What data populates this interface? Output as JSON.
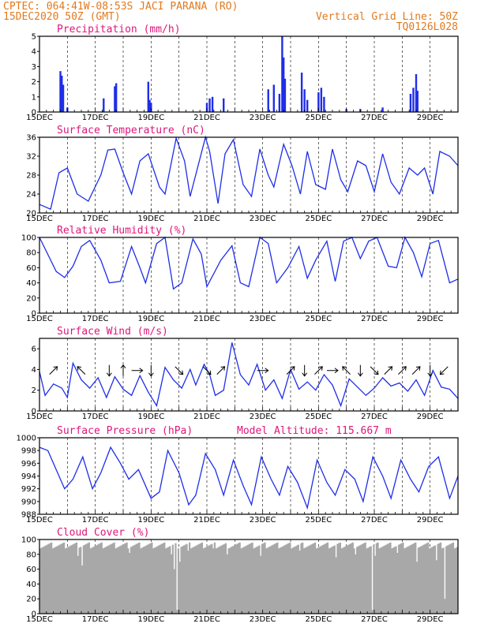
{
  "header": {
    "line1_left": "CPTEC:   064:41W-08:53S   JACI PARANA (RO)",
    "line2_left": "15DEC2020 50Z (GMT)",
    "line2_right": "Vertical Grid Line: 50Z",
    "line3_right": "TQ0126L028"
  },
  "colors": {
    "header": "#e07a1f",
    "panel_title": "#e0157a",
    "series": "#1f2ee8",
    "cloud": "#a8a8a8",
    "axis": "#000000"
  },
  "chart_data": [
    {
      "type": "bar",
      "title": "Precipitation (mm/h)",
      "x_tick_labels": [
        "15DEC",
        "17DEC",
        "19DEC",
        "21DEC",
        "23DEC",
        "25DEC",
        "27DEC",
        "29DEC"
      ],
      "x_range_days": [
        0,
        15
      ],
      "ylim": [
        0,
        5
      ],
      "y_ticks": [
        "0",
        "1",
        "2",
        "3",
        "4",
        "5"
      ],
      "grid": "vertical dashed",
      "points": [
        [
          0.75,
          2.7
        ],
        [
          0.8,
          2.4
        ],
        [
          0.85,
          1.8
        ],
        [
          1.0,
          0.3
        ],
        [
          2.3,
          0.9
        ],
        [
          2.7,
          1.7
        ],
        [
          2.75,
          1.9
        ],
        [
          3.9,
          2.0
        ],
        [
          3.95,
          0.8
        ],
        [
          4.0,
          0.6
        ],
        [
          6.0,
          0.6
        ],
        [
          6.1,
          0.9
        ],
        [
          6.2,
          1.0
        ],
        [
          6.6,
          0.9
        ],
        [
          8.2,
          1.5
        ],
        [
          8.4,
          1.8
        ],
        [
          8.6,
          1.2
        ],
        [
          8.7,
          5.0
        ],
        [
          8.75,
          3.6
        ],
        [
          8.8,
          2.2
        ],
        [
          9.4,
          2.6
        ],
        [
          9.5,
          1.5
        ],
        [
          9.6,
          0.8
        ],
        [
          10.0,
          1.3
        ],
        [
          10.1,
          1.6
        ],
        [
          10.2,
          1.0
        ],
        [
          11.0,
          0.2
        ],
        [
          11.5,
          0.2
        ],
        [
          12.3,
          0.3
        ],
        [
          13.3,
          1.2
        ],
        [
          13.4,
          1.6
        ],
        [
          13.5,
          2.5
        ],
        [
          13.55,
          1.4
        ]
      ]
    },
    {
      "type": "line",
      "title": "Surface Temperature (nC)",
      "x_tick_labels": [
        "15DEC",
        "17DEC",
        "19DEC",
        "21DEC",
        "23DEC",
        "25DEC",
        "27DEC",
        "29DEC"
      ],
      "x_range_days": [
        0,
        15
      ],
      "ylim": [
        20,
        36
      ],
      "y_ticks": [
        "20",
        "24",
        "28",
        "32",
        "36"
      ],
      "grid": "vertical dashed",
      "points": [
        [
          0,
          21.8
        ],
        [
          0.4,
          20.8
        ],
        [
          0.7,
          28.5
        ],
        [
          1.0,
          29.5
        ],
        [
          1.35,
          24.0
        ],
        [
          1.75,
          22.5
        ],
        [
          2.2,
          28.0
        ],
        [
          2.45,
          33.3
        ],
        [
          2.7,
          33.5
        ],
        [
          3.0,
          28.5
        ],
        [
          3.3,
          24.0
        ],
        [
          3.6,
          31.0
        ],
        [
          3.9,
          32.5
        ],
        [
          4.3,
          25.5
        ],
        [
          4.5,
          24.0
        ],
        [
          4.9,
          35.8
        ],
        [
          5.2,
          31.0
        ],
        [
          5.4,
          23.5
        ],
        [
          5.95,
          36.0
        ],
        [
          6.1,
          33.0
        ],
        [
          6.4,
          22.0
        ],
        [
          6.65,
          32.5
        ],
        [
          6.95,
          35.5
        ],
        [
          7.3,
          26.0
        ],
        [
          7.6,
          23.5
        ],
        [
          7.9,
          33.5
        ],
        [
          8.2,
          28.0
        ],
        [
          8.4,
          25.5
        ],
        [
          8.75,
          34.5
        ],
        [
          9.05,
          30.0
        ],
        [
          9.35,
          24.0
        ],
        [
          9.6,
          33.0
        ],
        [
          9.9,
          26.0
        ],
        [
          10.25,
          25.0
        ],
        [
          10.5,
          33.5
        ],
        [
          10.8,
          27.0
        ],
        [
          11.05,
          24.5
        ],
        [
          11.4,
          31.0
        ],
        [
          11.7,
          30.0
        ],
        [
          12.0,
          24.5
        ],
        [
          12.3,
          32.5
        ],
        [
          12.6,
          26.5
        ],
        [
          12.9,
          24.0
        ],
        [
          13.25,
          29.5
        ],
        [
          13.55,
          28.0
        ],
        [
          13.8,
          29.5
        ],
        [
          14.1,
          24.0
        ],
        [
          14.35,
          33.0
        ],
        [
          14.7,
          32.0
        ],
        [
          15.0,
          30.0
        ]
      ]
    },
    {
      "type": "line",
      "title": "Relative Humidity (%)",
      "x_tick_labels": [
        "15DEC",
        "17DEC",
        "19DEC",
        "21DEC",
        "23DEC",
        "25DEC",
        "27DEC",
        "29DEC"
      ],
      "x_range_days": [
        0,
        15
      ],
      "ylim": [
        0,
        100
      ],
      "y_ticks": [
        "0",
        "20",
        "40",
        "60",
        "80",
        "100"
      ],
      "grid": "vertical dashed",
      "points": [
        [
          0,
          100
        ],
        [
          0.6,
          55
        ],
        [
          0.9,
          47
        ],
        [
          1.2,
          62
        ],
        [
          1.5,
          88
        ],
        [
          1.8,
          96
        ],
        [
          2.2,
          70
        ],
        [
          2.5,
          40
        ],
        [
          2.9,
          42
        ],
        [
          3.3,
          88
        ],
        [
          3.6,
          60
        ],
        [
          3.8,
          40
        ],
        [
          4.2,
          92
        ],
        [
          4.5,
          100
        ],
        [
          4.8,
          32
        ],
        [
          5.1,
          40
        ],
        [
          5.5,
          98
        ],
        [
          5.8,
          78
        ],
        [
          6.0,
          35
        ],
        [
          6.5,
          70
        ],
        [
          6.9,
          89
        ],
        [
          7.2,
          40
        ],
        [
          7.5,
          35
        ],
        [
          7.9,
          100
        ],
        [
          8.2,
          92
        ],
        [
          8.5,
          40
        ],
        [
          8.9,
          60
        ],
        [
          9.3,
          88
        ],
        [
          9.6,
          46
        ],
        [
          9.9,
          70
        ],
        [
          10.3,
          95
        ],
        [
          10.6,
          42
        ],
        [
          10.9,
          95
        ],
        [
          11.2,
          100
        ],
        [
          11.5,
          72
        ],
        [
          11.8,
          95
        ],
        [
          12.1,
          100
        ],
        [
          12.5,
          62
        ],
        [
          12.8,
          60
        ],
        [
          13.1,
          100
        ],
        [
          13.4,
          80
        ],
        [
          13.7,
          48
        ],
        [
          14.0,
          92
        ],
        [
          14.3,
          96
        ],
        [
          14.7,
          40
        ],
        [
          15.0,
          45
        ]
      ]
    },
    {
      "type": "line",
      "title": "Surface Wind (m/s)",
      "x_tick_labels": [
        "15DEC",
        "17DEC",
        "19DEC",
        "21DEC",
        "23DEC",
        "25DEC",
        "27DEC",
        "29DEC"
      ],
      "x_range_days": [
        0,
        15
      ],
      "ylim": [
        0,
        7
      ],
      "y_ticks": [
        "0",
        "2",
        "4",
        "6"
      ],
      "grid": "vertical dashed",
      "points": [
        [
          0,
          3.8
        ],
        [
          0.2,
          1.5
        ],
        [
          0.5,
          2.6
        ],
        [
          0.8,
          2.2
        ],
        [
          1.0,
          1.3
        ],
        [
          1.2,
          4.6
        ],
        [
          1.5,
          3.0
        ],
        [
          1.8,
          2.2
        ],
        [
          2.1,
          3.2
        ],
        [
          2.4,
          1.3
        ],
        [
          2.7,
          3.3
        ],
        [
          3.0,
          2.1
        ],
        [
          3.3,
          1.5
        ],
        [
          3.6,
          3.4
        ],
        [
          3.9,
          1.8
        ],
        [
          4.2,
          0.5
        ],
        [
          4.5,
          4.2
        ],
        [
          4.8,
          3.0
        ],
        [
          5.1,
          2.2
        ],
        [
          5.4,
          4.0
        ],
        [
          5.6,
          2.5
        ],
        [
          5.9,
          4.5
        ],
        [
          6.1,
          3.5
        ],
        [
          6.3,
          1.5
        ],
        [
          6.6,
          2.0
        ],
        [
          6.9,
          6.6
        ],
        [
          7.2,
          3.5
        ],
        [
          7.5,
          2.5
        ],
        [
          7.8,
          4.5
        ],
        [
          8.1,
          2.0
        ],
        [
          8.4,
          3.0
        ],
        [
          8.7,
          1.2
        ],
        [
          9.0,
          4.0
        ],
        [
          9.3,
          2.1
        ],
        [
          9.6,
          2.8
        ],
        [
          9.9,
          2.0
        ],
        [
          10.2,
          3.5
        ],
        [
          10.5,
          2.5
        ],
        [
          10.8,
          0.5
        ],
        [
          11.1,
          3.1
        ],
        [
          11.4,
          2.3
        ],
        [
          11.7,
          1.5
        ],
        [
          12.0,
          2.2
        ],
        [
          12.3,
          3.2
        ],
        [
          12.6,
          2.4
        ],
        [
          12.9,
          2.7
        ],
        [
          13.2,
          1.9
        ],
        [
          13.5,
          3.0
        ],
        [
          13.8,
          1.5
        ],
        [
          14.1,
          3.9
        ],
        [
          14.4,
          2.3
        ],
        [
          14.7,
          2.1
        ],
        [
          15.0,
          1.2
        ]
      ],
      "wind_arrows": [
        {
          "x": 0.5,
          "dir": "ne"
        },
        {
          "x": 1.5,
          "dir": "nw"
        },
        {
          "x": 2.5,
          "dir": "s"
        },
        {
          "x": 3.0,
          "dir": "n"
        },
        {
          "x": 3.5,
          "dir": "e"
        },
        {
          "x": 4.0,
          "dir": "s"
        },
        {
          "x": 5.0,
          "dir": "se"
        },
        {
          "x": 6.0,
          "dir": "se"
        },
        {
          "x": 6.5,
          "dir": "ne"
        },
        {
          "x": 8.0,
          "dir": "e"
        },
        {
          "x": 9.0,
          "dir": "ne"
        },
        {
          "x": 9.5,
          "dir": "s"
        },
        {
          "x": 10.0,
          "dir": "ne"
        },
        {
          "x": 10.5,
          "dir": "e"
        },
        {
          "x": 11.0,
          "dir": "nw"
        },
        {
          "x": 11.5,
          "dir": "s"
        },
        {
          "x": 12.0,
          "dir": "se"
        },
        {
          "x": 12.5,
          "dir": "ne"
        },
        {
          "x": 13.0,
          "dir": "ne"
        },
        {
          "x": 13.5,
          "dir": "ne"
        },
        {
          "x": 14.0,
          "dir": "s"
        },
        {
          "x": 14.5,
          "dir": "sw"
        }
      ]
    },
    {
      "type": "line",
      "title": "Surface Pressure (hPa)",
      "annotation": "Model Altitude: 115.667  m",
      "x_tick_labels": [
        "15DEC",
        "17DEC",
        "19DEC",
        "21DEC",
        "23DEC",
        "25DEC",
        "27DEC",
        "29DEC"
      ],
      "x_range_days": [
        0,
        15
      ],
      "ylim": [
        988,
        1000
      ],
      "y_ticks": [
        "988",
        "990",
        "992",
        "994",
        "996",
        "998",
        "1000"
      ],
      "grid": "vertical dashed",
      "points": [
        [
          0,
          998.5
        ],
        [
          0.3,
          998.0
        ],
        [
          0.55,
          995.5
        ],
        [
          0.9,
          992.0
        ],
        [
          1.2,
          993.5
        ],
        [
          1.55,
          997.0
        ],
        [
          1.9,
          992.0
        ],
        [
          2.2,
          994.5
        ],
        [
          2.55,
          998.5
        ],
        [
          2.9,
          996.0
        ],
        [
          3.2,
          993.5
        ],
        [
          3.55,
          995.0
        ],
        [
          4.0,
          990.5
        ],
        [
          4.3,
          991.5
        ],
        [
          4.6,
          998.0
        ],
        [
          5.0,
          994.5
        ],
        [
          5.35,
          989.5
        ],
        [
          5.6,
          991.0
        ],
        [
          5.95,
          997.5
        ],
        [
          6.3,
          995.0
        ],
        [
          6.6,
          991.0
        ],
        [
          6.95,
          996.5
        ],
        [
          7.3,
          992.5
        ],
        [
          7.6,
          989.5
        ],
        [
          7.95,
          997.0
        ],
        [
          8.3,
          993.5
        ],
        [
          8.6,
          991.0
        ],
        [
          8.9,
          995.5
        ],
        [
          9.25,
          993.0
        ],
        [
          9.6,
          989.0
        ],
        [
          9.95,
          996.5
        ],
        [
          10.3,
          993.0
        ],
        [
          10.6,
          991.0
        ],
        [
          10.95,
          995.0
        ],
        [
          11.3,
          993.5
        ],
        [
          11.6,
          990.0
        ],
        [
          11.95,
          997.0
        ],
        [
          12.3,
          994.0
        ],
        [
          12.6,
          990.5
        ],
        [
          12.95,
          996.5
        ],
        [
          13.3,
          993.5
        ],
        [
          13.6,
          991.5
        ],
        [
          13.95,
          995.5
        ],
        [
          14.3,
          997.0
        ],
        [
          14.7,
          990.5
        ],
        [
          15.0,
          994.0
        ]
      ]
    },
    {
      "type": "bar",
      "title": "Cloud Cover (%)",
      "x_tick_labels": [
        "15DEC",
        "17DEC",
        "19DEC",
        "21DEC",
        "23DEC",
        "25DEC",
        "27DEC",
        "29DEC"
      ],
      "x_range_days": [
        0,
        15
      ],
      "ylim": [
        0,
        100
      ],
      "y_ticks": [
        "0",
        "20",
        "40",
        "60",
        "80",
        "100"
      ],
      "grid": "vertical dashed",
      "baseline": 92,
      "dips": [
        [
          1.35,
          78
        ],
        [
          1.5,
          65
        ],
        [
          3.2,
          82
        ],
        [
          4.7,
          80
        ],
        [
          4.8,
          60
        ],
        [
          4.9,
          5
        ],
        [
          5.0,
          70
        ],
        [
          5.3,
          85
        ],
        [
          6.2,
          88
        ],
        [
          6.7,
          80
        ],
        [
          7.9,
          78
        ],
        [
          9.3,
          85
        ],
        [
          10.6,
          76
        ],
        [
          11.3,
          80
        ],
        [
          11.9,
          5
        ],
        [
          12.0,
          78
        ],
        [
          12.8,
          82
        ],
        [
          13.5,
          70
        ],
        [
          14.2,
          72
        ],
        [
          14.5,
          20
        ]
      ]
    }
  ]
}
